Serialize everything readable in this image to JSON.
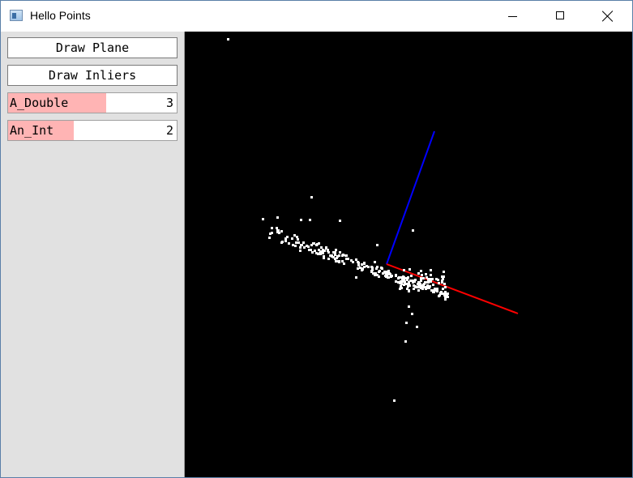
{
  "window": {
    "title": "Hello Points"
  },
  "sidebar": {
    "buttons": [
      {
        "label": "Draw Plane"
      },
      {
        "label": "Draw Inliers"
      }
    ],
    "sliders": [
      {
        "label": "A_Double",
        "value": "3",
        "fraction": 0.58
      },
      {
        "label": "An_Int",
        "value": "2",
        "fraction": 0.39
      }
    ]
  },
  "viewport": {
    "background": "#000000",
    "point_color": "#ffffff",
    "axes": [
      {
        "name": "x-axis",
        "color": "#ff0000"
      },
      {
        "name": "z-axis",
        "color": "#0000ff"
      }
    ]
  }
}
